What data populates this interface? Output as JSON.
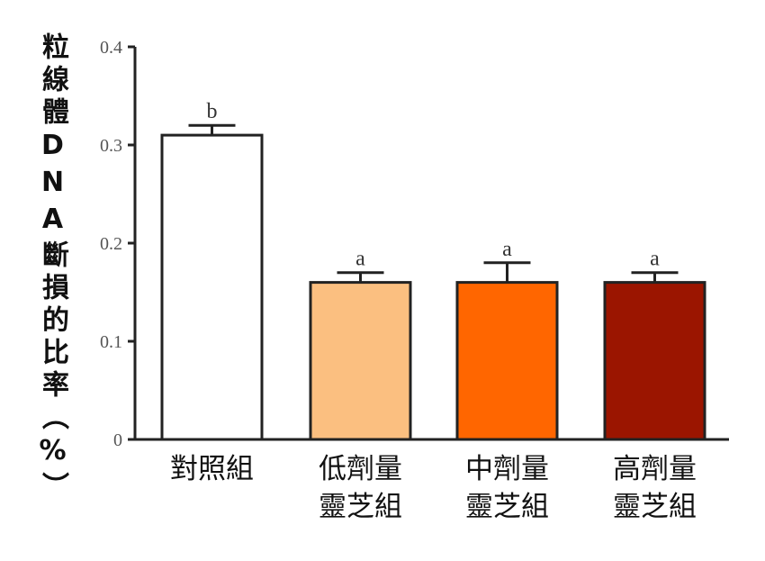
{
  "chart_data": {
    "type": "bar",
    "y_label": "粒線體DNA斷損的比率（%）",
    "categories": [
      "對照組",
      "低劑量靈芝組",
      "中劑量靈芝組",
      "高劑量靈芝組"
    ],
    "values": [
      0.31,
      0.16,
      0.16,
      0.16
    ],
    "errors": [
      0.01,
      0.01,
      0.02,
      0.01
    ],
    "significance_labels": [
      "b",
      "a",
      "a",
      "a"
    ],
    "colors": [
      "#ffffff",
      "#fbbf80",
      "#ff6600",
      "#9b1500"
    ],
    "ylim": [
      0,
      0.4
    ],
    "yticks": [
      0,
      0.1,
      0.2,
      0.3,
      0.4
    ]
  }
}
